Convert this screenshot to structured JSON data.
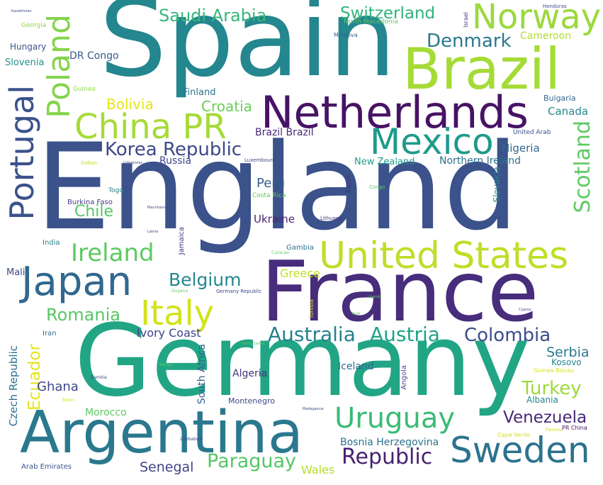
{
  "words": [
    {
      "text": "Spain",
      "color": "#24868e"
    },
    {
      "text": "England",
      "color": "#3b528b"
    },
    {
      "text": "Germany",
      "color": "#21a585"
    },
    {
      "text": "France",
      "color": "#472d7b"
    },
    {
      "text": "Argentina",
      "color": "#2a788e"
    },
    {
      "text": "Brazil",
      "color": "#a5db36"
    },
    {
      "text": "Netherlands",
      "color": "#471365"
    },
    {
      "text": "United States",
      "color": "#bddf26"
    },
    {
      "text": "Japan",
      "color": "#31688e"
    },
    {
      "text": "Mexico",
      "color": "#1f9a8a"
    },
    {
      "text": "Sweden",
      "color": "#2c728e"
    },
    {
      "text": "Uruguay",
      "color": "#3bbb75"
    },
    {
      "text": "Norway",
      "color": "#9bd93c"
    },
    {
      "text": "China PR",
      "color": "#a5db36"
    },
    {
      "text": "Italy",
      "color": "#d2e21b"
    },
    {
      "text": "Ireland",
      "color": "#5ec962"
    },
    {
      "text": "Portugal",
      "color": "#3b528b"
    },
    {
      "text": "Poland",
      "color": "#84d44b"
    },
    {
      "text": "Korea Republic",
      "color": "#3e4989"
    },
    {
      "text": "Saudi Arabia",
      "color": "#35b779"
    },
    {
      "text": "Switzerland",
      "color": "#2fb47c"
    },
    {
      "text": "Denmark",
      "color": "#2a788e"
    },
    {
      "text": "Colombia",
      "color": "#3e4c8a"
    },
    {
      "text": "Republic",
      "color": "#481f70"
    },
    {
      "text": "Austria",
      "color": "#20a386"
    },
    {
      "text": "Australia",
      "color": "#27808e"
    },
    {
      "text": "Belgium",
      "color": "#23898e"
    },
    {
      "text": "Romania",
      "color": "#58c765"
    },
    {
      "text": "Scotland",
      "color": "#5ec962"
    },
    {
      "text": "Paraguay",
      "color": "#56c667"
    },
    {
      "text": "Croatia",
      "color": "#6ccd5a"
    },
    {
      "text": "Bolivia",
      "color": "#e5e419"
    },
    {
      "text": "Chile",
      "color": "#58c765"
    },
    {
      "text": "Turkey",
      "color": "#9dd93b"
    },
    {
      "text": "Venezuela",
      "color": "#482878"
    },
    {
      "text": "Ecuador",
      "color": "#e5e419"
    },
    {
      "text": "Senegal",
      "color": "#414487"
    },
    {
      "text": "Ghana",
      "color": "#3e4989"
    },
    {
      "text": "Peru",
      "color": "#355f8d"
    },
    {
      "text": "Serbia",
      "color": "#2a788e"
    },
    {
      "text": "Canada",
      "color": "#23898e"
    },
    {
      "text": "Greece",
      "color": "#c2df23"
    },
    {
      "text": "Nigeria",
      "color": "#31688e"
    },
    {
      "text": "Ivory Coast",
      "color": "#424086"
    },
    {
      "text": "Cameroon",
      "color": "#b0dd2f"
    },
    {
      "text": "Ukraine",
      "color": "#482475"
    },
    {
      "text": "Algeria",
      "color": "#46337e"
    },
    {
      "text": "Iceland",
      "color": "#31688e"
    },
    {
      "text": "Russia",
      "color": "#3f4788"
    },
    {
      "text": "Wales",
      "color": "#b8de29"
    },
    {
      "text": "Bosnia Herzegovina",
      "color": "#2c728e"
    },
    {
      "text": "Morocco",
      "color": "#5ec962"
    },
    {
      "text": "Brazil Brazil",
      "color": "#482878"
    },
    {
      "text": "Northern Ireland",
      "color": "#2c728e"
    },
    {
      "text": "New Zealand",
      "color": "#1e9b8a"
    },
    {
      "text": "Slovenia",
      "color": "#21918c"
    },
    {
      "text": "Hungary",
      "color": "#3b528b"
    },
    {
      "text": "DR Congo",
      "color": "#38598c"
    },
    {
      "text": "Finland",
      "color": "#2c728e"
    },
    {
      "text": "Czech Republic",
      "color": "#2c728e"
    },
    {
      "text": "South Africa",
      "color": "#33638d"
    },
    {
      "text": "Slovakia",
      "color": "#25858e"
    },
    {
      "text": "Kosovo",
      "color": "#26828e"
    },
    {
      "text": "Albania",
      "color": "#26828e"
    },
    {
      "text": "Montenegro",
      "color": "#3e4989"
    },
    {
      "text": "Angola",
      "color": "#5b3c8d"
    },
    {
      "text": "Bulgaria",
      "color": "#31688e"
    },
    {
      "text": "Jamaica",
      "color": "#46327e"
    },
    {
      "text": "Mali",
      "color": "#3e4989"
    },
    {
      "text": "Burkina Faso",
      "color": "#443a83"
    },
    {
      "text": "Arab Emirates",
      "color": "#3b528b"
    },
    {
      "text": "Gambia",
      "color": "#2c728e"
    },
    {
      "text": "India",
      "color": "#26828e"
    },
    {
      "text": "Iran",
      "color": "#2c728e"
    },
    {
      "text": "Georgia",
      "color": "#8fd744"
    },
    {
      "text": "Guinea",
      "color": "#8fd744"
    },
    {
      "text": "Togo",
      "color": "#26828e"
    },
    {
      "text": "Costa Rica",
      "color": "#5ec962"
    },
    {
      "text": "Lithuania",
      "color": "#46337e"
    },
    {
      "text": "North Macedonia",
      "color": "#5ec962"
    },
    {
      "text": "Moldova",
      "color": "#33638d"
    },
    {
      "text": "Israel",
      "color": "#46337e"
    },
    {
      "text": "Egypt",
      "color": "#46337e"
    },
    {
      "text": "United Arab",
      "color": "#3b528b"
    },
    {
      "text": "Guinea Bissau",
      "color": "#d2e21b"
    },
    {
      "text": "Cape Verde",
      "color": "#d2e21b"
    },
    {
      "text": "PR China",
      "color": "#471365"
    },
    {
      "text": "Germany Republic",
      "color": "#3e4989"
    },
    {
      "text": "Tunisia",
      "color": "#d2e21b"
    },
    {
      "text": "Honduras",
      "color": "#3e4989"
    },
    {
      "text": "Luxembourg",
      "color": "#3e4989"
    },
    {
      "text": "Uzbekistan",
      "color": "#3e4989"
    },
    {
      "text": "Gabon",
      "color": "#b8de29"
    },
    {
      "text": "Latvia",
      "color": "#3e4989"
    },
    {
      "text": "Mauritania",
      "color": "#3e4989"
    },
    {
      "text": "Congo",
      "color": "#5ec962"
    },
    {
      "text": "Zimbabwe",
      "color": "#3e4989"
    },
    {
      "text": "Panama",
      "color": "#d2e21b"
    },
    {
      "text": "Benin",
      "color": "#d2e21b"
    },
    {
      "text": "Zambia",
      "color": "#3e4989"
    },
    {
      "text": "Kenya",
      "color": "#5ec962"
    },
    {
      "text": "Haiti",
      "color": "#5ec962"
    },
    {
      "text": "Madagascar",
      "color": "#3e4989"
    },
    {
      "text": "Sierra Leone",
      "color": "#5ec962"
    },
    {
      "text": "Cyprus",
      "color": "#3e4989"
    },
    {
      "text": "Kazakhstan",
      "color": "#3e4989"
    },
    {
      "text": "Curacao",
      "color": "#5ec962"
    },
    {
      "text": "Guyana",
      "color": "#5ec962"
    },
    {
      "text": "Uganda",
      "color": "#5ec962"
    }
  ]
}
